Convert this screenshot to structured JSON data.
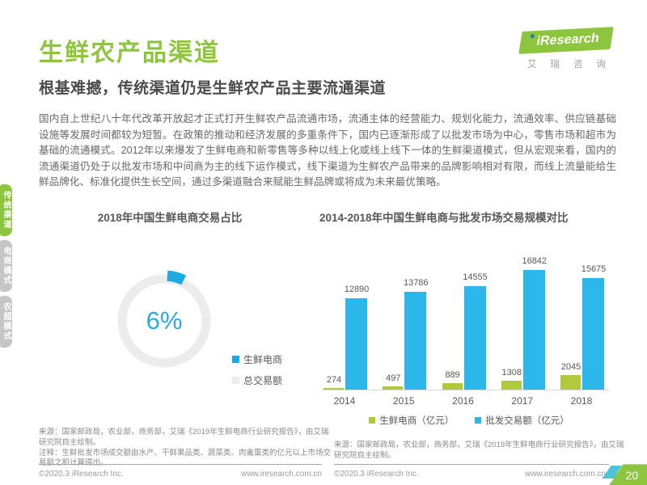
{
  "page": {
    "title": "生鲜农产品渠道",
    "subtitle": "根基难撼，传统渠道仍是生鲜农产品主要流通渠道",
    "body": "国内自上世纪八十年代改革开放起才正式打开生鲜农产品流通市场，流通主体的经营能力、规划化能力，流通效率、供应链基础设施等发展时间都较为短暂。在政策的推动和经济发展的多重条件下，国内已逐渐形成了以批发市场为中心，零售市场和超市为基础的流通模式。2012年以来爆发了生鲜电商和新零售等多种以线上化或线上线下一体的生鲜渠道模式，但从宏观来看，国内的流通渠道仍处于以批发市场和中间商为主的线下运作模式，线下渠道为生鲜农产品带来的品牌影响相对有限，而线上流量能给生鲜品牌化、标准化提供生长空间，通过多渠道融合来赋能生鲜品牌或将成为未来最优策略。"
  },
  "logo": {
    "brand": "iResearch",
    "caption": "艾瑞咨询"
  },
  "sidebar": {
    "tabs": [
      {
        "label": "传统渠道",
        "active": true
      },
      {
        "label": "电商模式",
        "active": false
      },
      {
        "label": "农超模式",
        "active": false
      }
    ]
  },
  "colors": {
    "brand_green": "#8DC53E",
    "bar_green": "#AFCA3C",
    "bar_blue": "#2CB7EA",
    "donut_blue": "#1EA9E1",
    "donut_gray": "#ECECEC",
    "inactive_tab_gray": "#C6C6C6"
  },
  "chart_data": [
    {
      "type": "pie",
      "subtype": "donut",
      "title": "2018年中国生鲜电商交易占比",
      "center_label": "6%",
      "slices": [
        {
          "label": "生鲜电商",
          "value": 6,
          "color": "#1EA9E1"
        },
        {
          "label": "总交易额",
          "value": 94,
          "color": "#ECECEC"
        }
      ],
      "legend_position": "right-bottom"
    },
    {
      "type": "bar",
      "title": "2014-2018年中国生鲜电商与批发市场交易规模对比",
      "categories": [
        "2014",
        "2015",
        "2016",
        "2017",
        "2018"
      ],
      "series": [
        {
          "name": "生鲜电商（亿元）",
          "color": "#AFCA3C",
          "values": [
            274,
            497,
            889,
            1308,
            2045
          ]
        },
        {
          "name": "批发交易额（亿元）",
          "color": "#2CB7EA",
          "values": [
            12890,
            13786,
            14555,
            16842,
            15675
          ]
        }
      ],
      "value_labels": true,
      "grid": false,
      "ylim": [
        0,
        17000
      ],
      "legend_position": "bottom"
    }
  ],
  "footnotes": {
    "left": "来源：国家邮政局，农业部，商务部，艾瑞《2019年生鲜电商行业研究报告》，由艾瑞\n研究院自主绘制。\n注释：生鲜批发市场成交额由水产、干鲜果品类、蔬菜类、肉禽蛋类的亿元以上市场交\n易额之和计算得出。",
    "right": "来源：国家邮政局，农业部，商务部，艾瑞《2019年生鲜电商行业研究报告》，由艾瑞\n研究院自主绘制。"
  },
  "footer": {
    "copyright": "©2020.3 iResearch Inc.",
    "website": "www.iresearch.com.cn",
    "page_number": "20"
  }
}
